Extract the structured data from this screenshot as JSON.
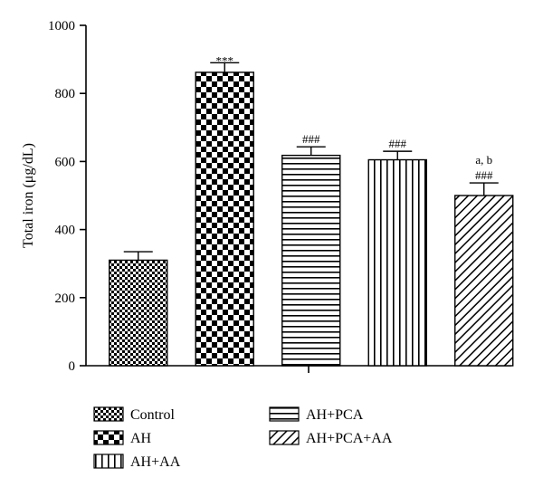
{
  "chart_data": {
    "type": "bar",
    "ylabel": "Total iron (μg/dL)",
    "ylim": [
      0,
      1000
    ],
    "yticks": [
      0,
      200,
      400,
      600,
      800,
      1000
    ],
    "grid": false,
    "legend_position": "bottom",
    "categories": [
      "Control",
      "AH",
      "AH+AA",
      "AH+PCA",
      "AH+PCA+AA"
    ],
    "bars": [
      {
        "category": "Control",
        "value": 310,
        "error": 25,
        "annotation": [],
        "pattern": "small-checker"
      },
      {
        "category": "AH",
        "value": 862,
        "error": 28,
        "annotation": [
          "***"
        ],
        "pattern": "large-checker"
      },
      {
        "category": "AH+PCA",
        "value": 618,
        "error": 25,
        "annotation": [
          "###"
        ],
        "pattern": "horizontal-lines"
      },
      {
        "category": "AH+AA",
        "value": 605,
        "error": 25,
        "annotation": [
          "###"
        ],
        "pattern": "vertical-lines"
      },
      {
        "category": "AH+PCA+AA",
        "value": 500,
        "error": 37,
        "annotation": [
          "a, b",
          "###"
        ],
        "pattern": "diagonal-lines"
      }
    ],
    "legend": [
      {
        "label": "Control",
        "pattern": "small-checker"
      },
      {
        "label": "AH",
        "pattern": "large-checker"
      },
      {
        "label": "AH+AA",
        "pattern": "vertical-lines"
      },
      {
        "label": "AH+PCA",
        "pattern": "horizontal-lines"
      },
      {
        "label": "AH+PCA+AA",
        "pattern": "diagonal-lines"
      }
    ]
  }
}
